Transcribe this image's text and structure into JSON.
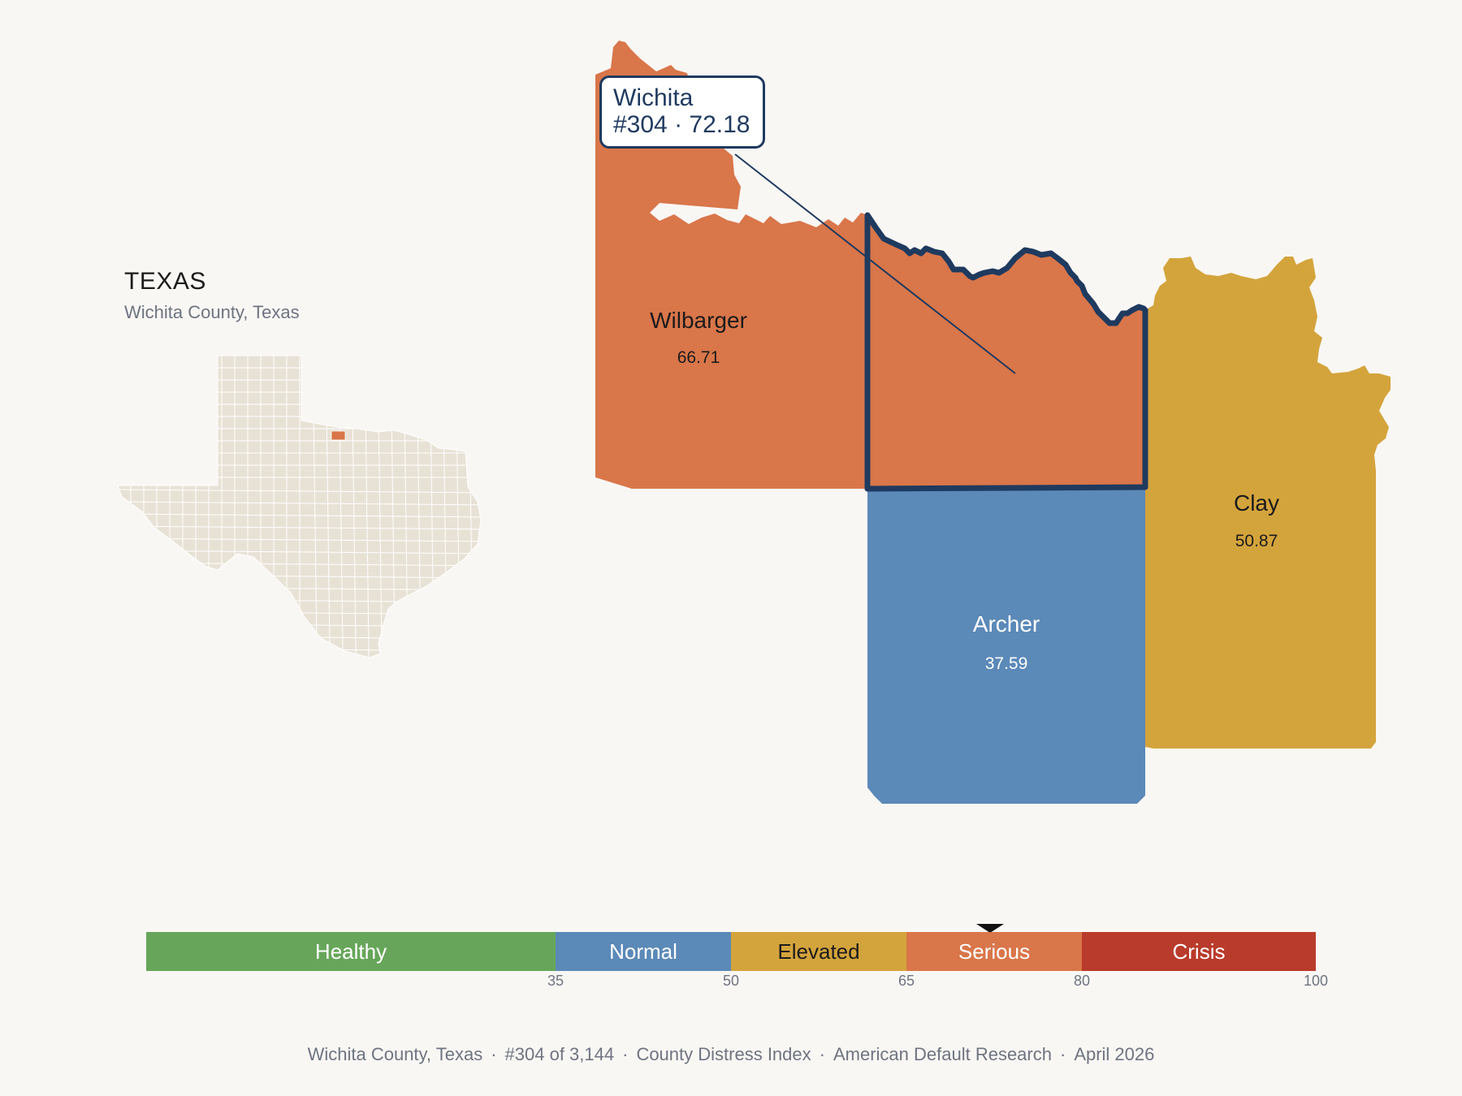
{
  "inset": {
    "state_title": "TEXAS",
    "subtitle": "Wichita County, Texas",
    "fill_color": "#e8e2d6",
    "highlight_color": "#d9764a"
  },
  "tooltip": {
    "county": "Wichita",
    "detail": "#304 · 72.18"
  },
  "counties": [
    {
      "name": "Wilbarger",
      "value": "66.71",
      "category": "Serious",
      "color": "#d9764a"
    },
    {
      "name": "Wichita",
      "value": "72.18",
      "category": "Serious",
      "color": "#d9764a",
      "selected": true
    },
    {
      "name": "Archer",
      "value": "37.59",
      "category": "Normal",
      "color": "#5b89b8"
    },
    {
      "name": "Clay",
      "value": "50.87",
      "category": "Elevated",
      "color": "#d4a43c"
    }
  ],
  "legend": {
    "bands": [
      {
        "label": "Healthy",
        "from": 0,
        "to": 35,
        "color": "#67a65a",
        "text_color": "#ffffff"
      },
      {
        "label": "Normal",
        "from": 35,
        "to": 50,
        "color": "#5b89b8",
        "text_color": "#ffffff"
      },
      {
        "label": "Elevated",
        "from": 50,
        "to": 65,
        "color": "#d4a43c",
        "text_color": "#1b1b1b"
      },
      {
        "label": "Serious",
        "from": 65,
        "to": 80,
        "color": "#d9764a",
        "text_color": "#ffffff"
      },
      {
        "label": "Crisis",
        "from": 80,
        "to": 100,
        "color": "#b93b2b",
        "text_color": "#ffffff"
      }
    ],
    "ticks": [
      "35",
      "50",
      "65",
      "80",
      "100"
    ],
    "marker_value": 72.18
  },
  "footer": {
    "county": "Wichita County, Texas",
    "rank": "#304 of 3,144",
    "index": "County Distress Index",
    "source": "American Default Research",
    "date": "April 2026"
  }
}
